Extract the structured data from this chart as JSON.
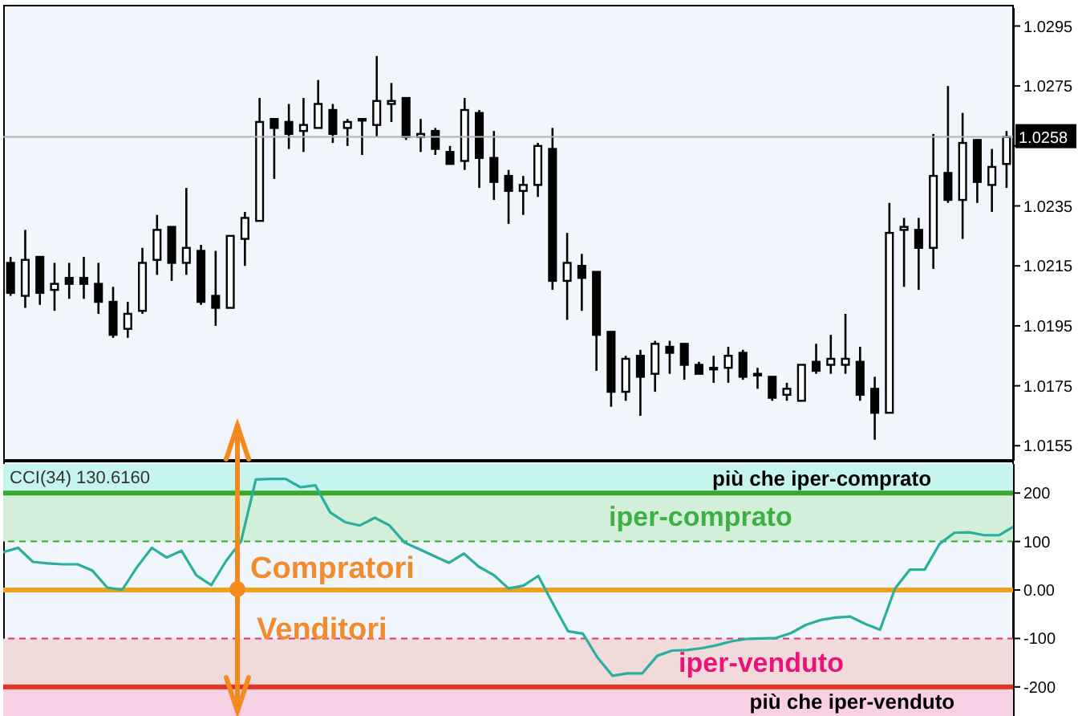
{
  "chart_data": [
    {
      "type": "candlestick",
      "categories": [
        null,
        null,
        null,
        null,
        null,
        null,
        null,
        null,
        null,
        null,
        null,
        null,
        null,
        null,
        null,
        null,
        null,
        null,
        null,
        null,
        null,
        null,
        null,
        null,
        null,
        null,
        null,
        null,
        null,
        null,
        null,
        null,
        null,
        null,
        null,
        null,
        null,
        null,
        null,
        null,
        null,
        null,
        null,
        null,
        null,
        null,
        null,
        null,
        null,
        null,
        null,
        null,
        null,
        null,
        null,
        null,
        null,
        null,
        null,
        null,
        null,
        null,
        null,
        null,
        null,
        null,
        null,
        null,
        null
      ],
      "ohlc": [
        [
          1.0216,
          1.0218,
          1.0205,
          1.0206
        ],
        [
          1.0205,
          1.0227,
          1.0201,
          1.0217
        ],
        [
          1.0218,
          1.0218,
          1.0202,
          1.0206
        ],
        [
          1.0207,
          1.0216,
          1.02,
          1.0209
        ],
        [
          1.0211,
          1.0216,
          1.0204,
          1.0209
        ],
        [
          1.0211,
          1.0218,
          1.0204,
          1.0209
        ],
        [
          1.0209,
          1.0216,
          1.0199,
          1.0203
        ],
        [
          1.0203,
          1.0208,
          1.0191,
          1.0192
        ],
        [
          1.0194,
          1.0203,
          1.0191,
          1.0199
        ],
        [
          1.02,
          1.0221,
          1.0199,
          1.0216
        ],
        [
          1.0217,
          1.0232,
          1.0212,
          1.0227
        ],
        [
          1.0228,
          1.0228,
          1.021,
          1.0216
        ],
        [
          1.0216,
          1.0241,
          1.0212,
          1.0221
        ],
        [
          1.022,
          1.0222,
          1.0202,
          1.0203
        ],
        [
          1.0205,
          1.022,
          1.0195,
          1.0201
        ],
        [
          1.0201,
          1.0225,
          1.0201,
          1.0225
        ],
        [
          1.0224,
          1.0233,
          1.0215,
          1.0231
        ],
        [
          1.023,
          1.0271,
          1.023,
          1.0263
        ],
        [
          1.0264,
          1.0264,
          1.0244,
          1.0261
        ],
        [
          1.0263,
          1.0269,
          1.0254,
          1.0259
        ],
        [
          1.026,
          1.0271,
          1.0253,
          1.0262
        ],
        [
          1.0261,
          1.0277,
          1.0261,
          1.0269
        ],
        [
          1.0267,
          1.0269,
          1.0256,
          1.0259
        ],
        [
          1.0261,
          1.0264,
          1.0255,
          1.0263
        ],
        [
          1.0264,
          1.0264,
          1.0252,
          1.0264
        ],
        [
          1.0262,
          1.0285,
          1.0258,
          1.027
        ],
        [
          1.0269,
          1.0276,
          1.0263,
          1.027
        ],
        [
          1.0271,
          1.0271,
          1.0257,
          1.0258
        ],
        [
          1.0258,
          1.0264,
          1.0253,
          1.0259
        ],
        [
          1.026,
          1.0261,
          1.0252,
          1.0254
        ],
        [
          1.0253,
          1.0255,
          1.0249,
          1.0249
        ],
        [
          1.025,
          1.0271,
          1.0247,
          1.0267
        ],
        [
          1.0266,
          1.0267,
          1.0241,
          1.0251
        ],
        [
          1.0251,
          1.026,
          1.0237,
          1.0243
        ],
        [
          1.0245,
          1.0247,
          1.0229,
          1.024
        ],
        [
          1.024,
          1.0245,
          1.0232,
          1.0242
        ],
        [
          1.0242,
          1.0256,
          1.0238,
          1.0255
        ],
        [
          1.0254,
          1.0261,
          1.0207,
          1.021
        ],
        [
          1.021,
          1.0226,
          1.0197,
          1.0216
        ],
        [
          1.0215,
          1.0219,
          1.02,
          1.0211
        ],
        [
          1.0213,
          1.0213,
          1.018,
          1.0192
        ],
        [
          1.0193,
          1.0193,
          1.0168,
          1.0173
        ],
        [
          1.0173,
          1.0185,
          1.017,
          1.0184
        ],
        [
          1.0185,
          1.0187,
          1.0165,
          1.0178
        ],
        [
          1.0179,
          1.019,
          1.0173,
          1.0189
        ],
        [
          1.0188,
          1.019,
          1.0179,
          1.0186
        ],
        [
          1.0189,
          1.0189,
          1.0177,
          1.0182
        ],
        [
          1.0182,
          1.0183,
          1.0179,
          1.0179
        ],
        [
          1.0181,
          1.0185,
          1.0176,
          1.0181
        ],
        [
          1.0181,
          1.0188,
          1.0176,
          1.0185
        ],
        [
          1.0186,
          1.0187,
          1.0177,
          1.0178
        ],
        [
          1.0179,
          1.0181,
          1.0174,
          1.0179
        ],
        [
          1.0178,
          1.0178,
          1.017,
          1.0171
        ],
        [
          1.0172,
          1.0176,
          1.017,
          1.0174
        ],
        [
          1.017,
          1.0182,
          1.017,
          1.0182
        ],
        [
          1.0183,
          1.0189,
          1.0179,
          1.018
        ],
        [
          1.0182,
          1.0192,
          1.0179,
          1.0184
        ],
        [
          1.0182,
          1.0199,
          1.0179,
          1.0184
        ],
        [
          1.0183,
          1.0188,
          1.017,
          1.0172
        ],
        [
          1.0174,
          1.0178,
          1.0157,
          1.0166
        ],
        [
          1.0166,
          1.0236,
          1.0166,
          1.0226
        ],
        [
          1.0227,
          1.0231,
          1.0208,
          1.0228
        ],
        [
          1.0227,
          1.0231,
          1.0207,
          1.0221
        ],
        [
          1.0221,
          1.0259,
          1.0214,
          1.0245
        ],
        [
          1.0246,
          1.0275,
          1.0236,
          1.0237
        ],
        [
          1.0237,
          1.0266,
          1.0224,
          1.0256
        ],
        [
          1.0257,
          1.0257,
          1.0236,
          1.0243
        ],
        [
          1.0242,
          1.0254,
          1.0233,
          1.0248
        ],
        [
          1.0249,
          1.026,
          1.0241,
          1.0258
        ]
      ],
      "ylim": [
        1.015,
        1.0301
      ],
      "yticks": [
        1.0155,
        1.0175,
        1.0195,
        1.0215,
        1.0235,
        {
          "value": 1.0255,
          "label": null
        },
        1.0275,
        1.0295
      ],
      "ref_lines": [
        {
          "axis": "y",
          "value": 1.0258,
          "label": "1.0258",
          "color": "#b4b4b4"
        }
      ],
      "tick_labels": "y"
    },
    {
      "type": "line",
      "title": "CCI(34) 130.6160",
      "categories": [
        null,
        null,
        null,
        null,
        null,
        null,
        null,
        null,
        null,
        null,
        null,
        null,
        null,
        null,
        null,
        null,
        null,
        null,
        null,
        null,
        null,
        null,
        null,
        null,
        null,
        null,
        null,
        null,
        null,
        null,
        null,
        null,
        null,
        null,
        null,
        null,
        null,
        null,
        null,
        null,
        null,
        null,
        null,
        null,
        null,
        null,
        null,
        null,
        null,
        null,
        null,
        null,
        null,
        null,
        null,
        null,
        null,
        null,
        null,
        null,
        null,
        null,
        null,
        null,
        null,
        null,
        null,
        null,
        null
      ],
      "series": [
        {
          "color": "#2aae9e",
          "values": [
            78,
            87,
            58,
            55,
            53,
            53,
            40,
            5,
            0,
            47,
            87,
            67,
            81,
            30,
            10,
            60,
            100,
            228,
            229,
            229,
            212,
            216,
            160,
            140,
            133,
            149,
            133,
            98,
            84,
            70,
            56,
            75,
            48,
            31,
            3,
            9,
            29,
            -29,
            -85,
            -90,
            -140,
            -177,
            -172,
            -172,
            -136,
            -125,
            -124,
            -120,
            -114,
            -106,
            -101,
            -100,
            -99,
            -89,
            -72,
            -62,
            -57,
            -55,
            -70,
            -82,
            3,
            42,
            42,
            95,
            118,
            119,
            113,
            113,
            131
          ]
        }
      ],
      "ylim": [
        -260,
        260
      ],
      "yticks": [
        200,
        100,
        {
          "value": 0,
          "label": "0.00"
        },
        -100,
        -200
      ],
      "bands": [
        {
          "axis": "y",
          "from": 200,
          "to": 260,
          "label": "più che iper-comprato",
          "color": "#c6f4ef"
        },
        {
          "axis": "y",
          "from": 100,
          "to": 200,
          "label": "iper-comprato",
          "color": "#d3efd9"
        },
        {
          "axis": "y",
          "from": -200,
          "to": -100,
          "label": "iper-venduto",
          "color": "#f0dada"
        },
        {
          "axis": "y",
          "from": -260,
          "to": -200,
          "label": "più che iper-venduto",
          "color": "#f8d0e6"
        }
      ],
      "ref_lines": [
        {
          "axis": "y",
          "value": 200,
          "color": "#3aa82c",
          "line_style": "solid"
        },
        {
          "axis": "y",
          "value": 100,
          "color": "#3aa82c",
          "line_style": "dashed"
        },
        {
          "axis": "y",
          "value": 0,
          "color": "#f0a020",
          "line_style": "solid"
        },
        {
          "axis": "y",
          "value": -100,
          "color": "#e0307a",
          "line_style": "dashed"
        },
        {
          "axis": "y",
          "value": -200,
          "color": "#e03420",
          "line_style": "solid"
        }
      ],
      "annotations": [
        "Compratori",
        "Venditori"
      ],
      "tick_labels": "y"
    }
  ]
}
